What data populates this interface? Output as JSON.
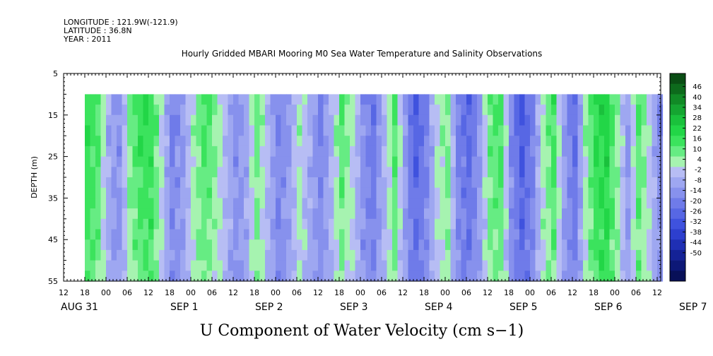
{
  "header_lines": [
    "LONGITUDE : 121.9W(-121.9)",
    "LATITUDE : 36.8N",
    "YEAR : 2011"
  ],
  "chart_data": {
    "type": "heatmap",
    "title": "Hourly Gridded MBARI Mooring M0 Sea Water Temperature and Salinity Observations",
    "xlabel": "U Component of Water Velocity (cm s−1)",
    "ylabel": "DEPTH (m)",
    "x_start_hours_from_aug31_12": 0,
    "x_end_hours_from_aug31_12": 169,
    "data_start_hours_from_aug31_12": 6,
    "ylim": [
      5,
      55
    ],
    "y_inverted": true,
    "data_depth_range": [
      10,
      55
    ],
    "y_ticks": [
      5,
      15,
      25,
      35,
      45,
      55
    ],
    "x_hour_ticks": [
      "12",
      "18",
      "00",
      "06",
      "12",
      "18",
      "00",
      "06",
      "12",
      "18",
      "00",
      "06",
      "12",
      "18",
      "00",
      "06",
      "12",
      "18",
      "00",
      "06",
      "12",
      "18",
      "00",
      "06",
      "12",
      "18",
      "00",
      "06",
      "12"
    ],
    "x_date_labels": [
      "AUG 31",
      "SEP  1",
      "SEP  2",
      "SEP  3",
      "SEP  4",
      "SEP  5",
      "SEP  6",
      "SEP  7"
    ],
    "colorbar": {
      "labels": [
        "46",
        "40",
        "34",
        "28",
        "22",
        "16",
        "10",
        "4",
        "-2",
        "-8",
        "-14",
        "-20",
        "-26",
        "-32",
        "-38",
        "-44",
        "-50"
      ],
      "colors": [
        "#0a4d14",
        "#0d6a1c",
        "#118a26",
        "#15a531",
        "#1ac13c",
        "#22d647",
        "#3be35d",
        "#66ec83",
        "#a6f3b0",
        "#b7bdf4",
        "#9ea7f1",
        "#8791ed",
        "#6f7be9",
        "#5767e4",
        "#3f52de",
        "#2d3fce",
        "#1f2fb4",
        "#142296",
        "#0d1877",
        "#081058"
      ]
    },
    "u_profile_time_hours": [
      6,
      9,
      12,
      15,
      18,
      21,
      24,
      27,
      30,
      33,
      36,
      39,
      42,
      45,
      48,
      51,
      54,
      57,
      60,
      63,
      66,
      69,
      72,
      75,
      78,
      81,
      84,
      87,
      90,
      93,
      96,
      99,
      102,
      105,
      108,
      111,
      114,
      117,
      120,
      123,
      126,
      129,
      132,
      135,
      138,
      141,
      144,
      147,
      150,
      153,
      156,
      159,
      162,
      165,
      168
    ],
    "u_values_cm_s": [
      14,
      10,
      -4,
      -8,
      6,
      12,
      14,
      2,
      -10,
      -6,
      4,
      10,
      6,
      -2,
      -8,
      -4,
      8,
      -2,
      -10,
      -6,
      4,
      -4,
      -10,
      -2,
      8,
      2,
      -8,
      -12,
      -2,
      8,
      -6,
      -16,
      -10,
      2,
      6,
      -10,
      -14,
      -6,
      8,
      10,
      -8,
      -18,
      -10,
      4,
      10,
      -6,
      -14,
      4,
      14,
      16,
      6,
      -6,
      10,
      2,
      -8
    ],
    "u_surface_offset_cm_s": [
      4,
      4,
      0,
      -2,
      4,
      6,
      4,
      2,
      -4,
      -2,
      2,
      6,
      4,
      2,
      -2,
      0,
      4,
      2,
      -4,
      -2,
      2,
      0,
      -4,
      0,
      6,
      2,
      -2,
      -4,
      0,
      6,
      -2,
      -6,
      -2,
      2,
      4,
      -4,
      -6,
      -2,
      4,
      6,
      -4,
      -6,
      -4,
      2,
      6,
      -2,
      -4,
      2,
      6,
      6,
      2,
      -2,
      4,
      0,
      -4
    ]
  }
}
